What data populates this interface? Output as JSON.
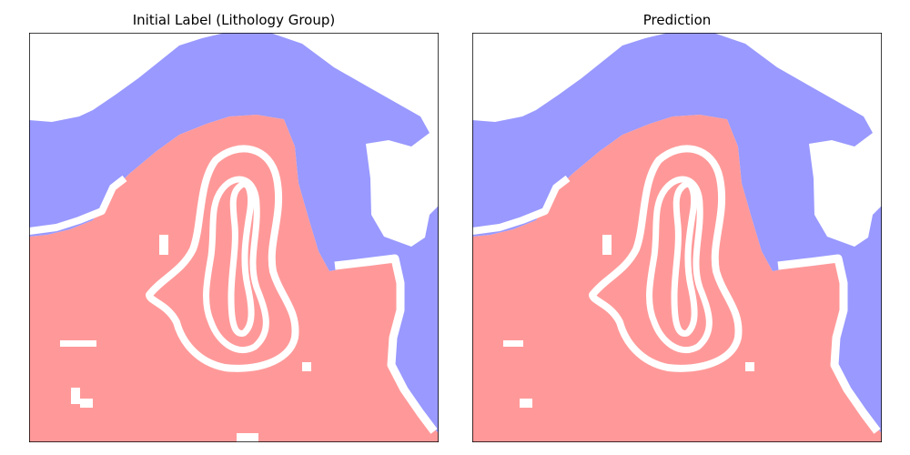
{
  "chart_data": [
    {
      "type": "heatmap",
      "title": "Initial Label (Lithology Group)",
      "xlabel": "",
      "ylabel": "",
      "axes_ticks": "none",
      "classes": [
        {
          "value": 0,
          "color": "#ffffff"
        },
        {
          "value": 1,
          "color": "#9999ff"
        },
        {
          "value": 2,
          "color": "#ff9999"
        }
      ]
    },
    {
      "type": "heatmap",
      "title": "Prediction",
      "xlabel": "",
      "ylabel": "",
      "axes_ticks": "none",
      "classes": [
        {
          "value": 0,
          "color": "#ffffff"
        },
        {
          "value": 1,
          "color": "#9999ff"
        },
        {
          "value": 2,
          "color": "#ff9999"
        }
      ]
    }
  ]
}
